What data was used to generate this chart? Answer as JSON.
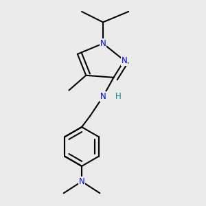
{
  "bg_color": "#ebebeb",
  "bond_color": "#000000",
  "bond_width": 1.5,
  "atom_colors": {
    "N": "#0000cc",
    "H": "#008080",
    "C": "#000000"
  },
  "font_size_atom": 8.5,
  "figsize": [
    3.0,
    3.0
  ],
  "dpi": 100,
  "xlim": [
    0.15,
    0.85
  ],
  "ylim": [
    0.02,
    0.98
  ]
}
